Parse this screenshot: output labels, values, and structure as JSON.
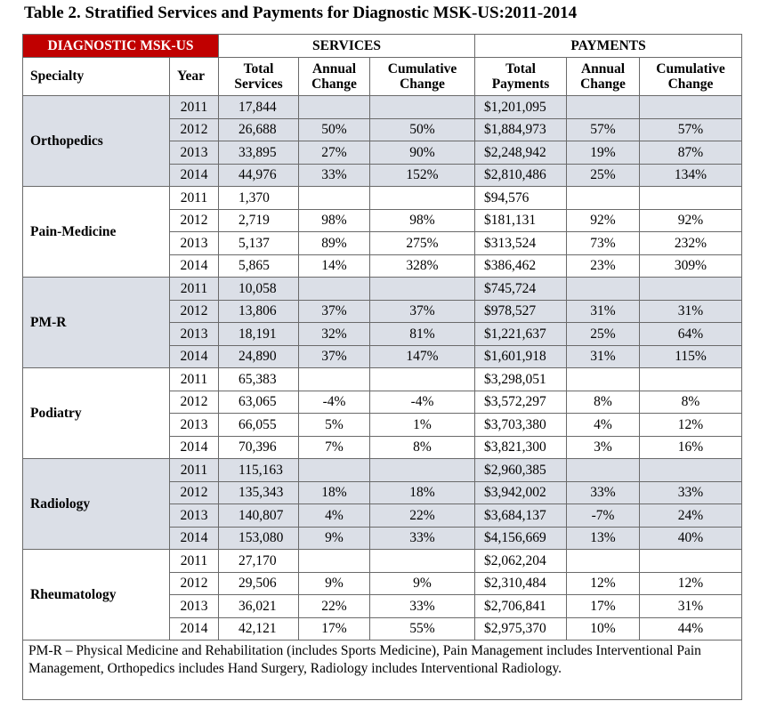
{
  "title": "Table 2. Stratified Services and Payments for Diagnostic MSK-US:2011-2014",
  "header": {
    "group_label": "DIAGNOSTIC MSK-US",
    "groups": [
      "SERVICES",
      "PAYMENTS"
    ],
    "columns": [
      "Specialty",
      "Year",
      "Total Services",
      "Annual Change",
      "Cumulative Change",
      "Total Payments",
      "Annual Change",
      "Cumulative Change"
    ]
  },
  "table": {
    "groups": [
      {
        "specialty": "Orthopedics",
        "rows": [
          [
            "2011",
            "17,844",
            null,
            null,
            "$1,201,095",
            null,
            null
          ],
          [
            "2012",
            "26,688",
            "50%",
            "50%",
            "$1,884,973",
            "57%",
            "57%"
          ],
          [
            "2013",
            "33,895",
            "27%",
            "90%",
            "$2,248,942",
            "19%",
            "87%"
          ],
          [
            "2014",
            "44,976",
            "33%",
            "152%",
            "$2,810,486",
            "25%",
            "134%"
          ]
        ]
      },
      {
        "specialty": "Pain-Medicine",
        "rows": [
          [
            "2011",
            "1,370",
            null,
            null,
            "$94,576",
            null,
            null
          ],
          [
            "2012",
            "2,719",
            "98%",
            "98%",
            "$181,131",
            "92%",
            "92%"
          ],
          [
            "2013",
            "5,137",
            "89%",
            "275%",
            "$313,524",
            "73%",
            "232%"
          ],
          [
            "2014",
            "5,865",
            "14%",
            "328%",
            "$386,462",
            "23%",
            "309%"
          ]
        ]
      },
      {
        "specialty": "PM-R",
        "rows": [
          [
            "2011",
            "10,058",
            null,
            null,
            "$745,724",
            null,
            null
          ],
          [
            "2012",
            "13,806",
            "37%",
            "37%",
            "$978,527",
            "31%",
            "31%"
          ],
          [
            "2013",
            "18,191",
            "32%",
            "81%",
            "$1,221,637",
            "25%",
            "64%"
          ],
          [
            "2014",
            "24,890",
            "37%",
            "147%",
            "$1,601,918",
            "31%",
            "115%"
          ]
        ]
      },
      {
        "specialty": "Podiatry",
        "rows": [
          [
            "2011",
            "65,383",
            null,
            null,
            "$3,298,051",
            null,
            null
          ],
          [
            "2012",
            "63,065",
            "-4%",
            "-4%",
            "$3,572,297",
            "8%",
            "8%"
          ],
          [
            "2013",
            "66,055",
            "5%",
            "1%",
            "$3,703,380",
            "4%",
            "12%"
          ],
          [
            "2014",
            "70,396",
            "7%",
            "8%",
            "$3,821,300",
            "3%",
            "16%"
          ]
        ]
      },
      {
        "specialty": "Radiology",
        "rows": [
          [
            "2011",
            "115,163",
            null,
            null,
            "$2,960,385",
            null,
            null
          ],
          [
            "2012",
            "135,343",
            "18%",
            "18%",
            "$3,942,002",
            "33%",
            "33%"
          ],
          [
            "2013",
            "140,807",
            "4%",
            "22%",
            "$3,684,137",
            "-7%",
            "24%"
          ],
          [
            "2014",
            "153,080",
            "9%",
            "33%",
            "$4,156,669",
            "13%",
            "40%"
          ]
        ]
      },
      {
        "specialty": "Rheumatology",
        "rows": [
          [
            "2011",
            "27,170",
            null,
            null,
            "$2,062,204",
            null,
            null
          ],
          [
            "2012",
            "29,506",
            "9%",
            "9%",
            "$2,310,484",
            "12%",
            "12%"
          ],
          [
            "2013",
            "36,021",
            "22%",
            "33%",
            "$2,706,841",
            "17%",
            "31%"
          ],
          [
            "2014",
            "42,121",
            "17%",
            "55%",
            "$2,975,370",
            "10%",
            "44%"
          ]
        ]
      }
    ]
  },
  "footnote": "PM-R – Physical Medicine and Rehabilitation (includes Sports Medicine), Pain Management includes Interventional Pain Management, Orthopedics includes Hand Surgery, Radiology includes Interventional Radiology."
}
